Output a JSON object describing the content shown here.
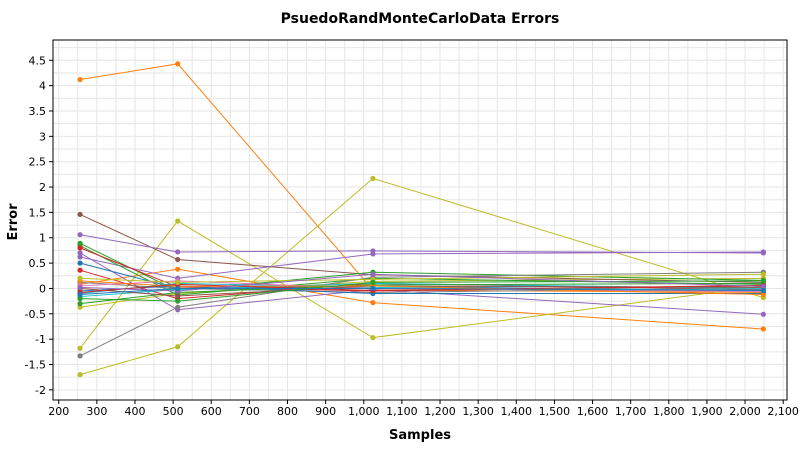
{
  "chart_data": {
    "type": "line",
    "title": "PsuedoRandMonteCarloData Errors",
    "xlabel": "Samples",
    "ylabel": "Error",
    "x": [
      256,
      512,
      1024,
      2048
    ],
    "xlim": [
      185,
      2110
    ],
    "ylim": [
      -2.2,
      4.9
    ],
    "x_ticks": [
      200,
      300,
      400,
      500,
      600,
      700,
      800,
      900,
      1000,
      1100,
      1200,
      1300,
      1400,
      1500,
      1600,
      1700,
      1800,
      1900,
      2000,
      2100
    ],
    "x_tick_labels": [
      "200",
      "300",
      "400",
      "500",
      "600",
      "700",
      "800",
      "900",
      "1,000",
      "1,100",
      "1,200",
      "1,300",
      "1,400",
      "1,500",
      "1,600",
      "1,700",
      "1,800",
      "1,900",
      "2,000",
      "2,100"
    ],
    "y_ticks": [
      -2,
      -1.5,
      -1,
      -0.5,
      0,
      0.5,
      1,
      1.5,
      2,
      2.5,
      3,
      3.5,
      4,
      4.5
    ],
    "y_tick_labels": [
      "-2",
      "-1.5",
      "-1",
      "-0.5",
      "0",
      "0.5",
      "1",
      "1.5",
      "2",
      "2.5",
      "3",
      "3.5",
      "4",
      "4.5"
    ],
    "grid": true,
    "legend": "none",
    "series": [
      {
        "color": "#ff7f0e",
        "values": [
          4.12,
          4.43,
          -0.03,
          -0.08
        ]
      },
      {
        "color": "#ff7f0e",
        "values": [
          0.08,
          0.38,
          -0.28,
          -0.8
        ]
      },
      {
        "color": "#bcbd22",
        "values": [
          -1.18,
          1.33,
          -0.97,
          0.05
        ]
      },
      {
        "color": "#bcbd22",
        "values": [
          -1.7,
          -1.15,
          2.17,
          -0.18
        ]
      },
      {
        "color": "#bcbd22",
        "values": [
          -0.37,
          -0.1,
          0.14,
          0.2
        ]
      },
      {
        "color": "#8c564b",
        "values": [
          1.46,
          0.57,
          0.27,
          0.12
        ]
      },
      {
        "color": "#9467bd",
        "values": [
          1.06,
          0.72,
          0.74,
          0.7
        ]
      },
      {
        "color": "#9467bd",
        "values": [
          0.7,
          -0.42,
          -0.02,
          -0.51
        ]
      },
      {
        "color": "#9467bd",
        "values": [
          0.62,
          0.2,
          0.68,
          0.72
        ]
      },
      {
        "color": "#2ca02c",
        "values": [
          0.89,
          -0.05,
          0.32,
          0.16
        ]
      },
      {
        "color": "#2ca02c",
        "values": [
          0.84,
          -0.13,
          0.2,
          0.08
        ]
      },
      {
        "color": "#d62728",
        "values": [
          0.8,
          0.03,
          -0.05,
          0.05
        ]
      },
      {
        "color": "#d62728",
        "values": [
          0.36,
          -0.2,
          0.1,
          -0.02
        ]
      },
      {
        "color": "#1f77b4",
        "values": [
          0.5,
          0.0,
          0.05,
          -0.06
        ]
      },
      {
        "color": "#7f7f7f",
        "values": [
          -1.33,
          -0.37,
          0.22,
          0.32
        ]
      },
      {
        "color": "#7f7f7f",
        "values": [
          0.12,
          0.0,
          -0.08,
          0.01
        ]
      },
      {
        "color": "#17becf",
        "values": [
          -0.1,
          0.1,
          0.02,
          -0.03
        ]
      },
      {
        "color": "#17becf",
        "values": [
          -0.16,
          -0.02,
          0.1,
          0.0
        ]
      },
      {
        "color": "#e377c2",
        "values": [
          0.05,
          0.15,
          0.0,
          -0.06
        ]
      },
      {
        "color": "#1f77b4",
        "values": [
          -0.05,
          0.05,
          -0.1,
          -0.1
        ]
      },
      {
        "color": "#2ca02c",
        "values": [
          -0.3,
          -0.08,
          0.07,
          0.1
        ]
      },
      {
        "color": "#8c564b",
        "values": [
          0.0,
          -0.15,
          0.05,
          0.02
        ]
      },
      {
        "color": "#ff7f0e",
        "values": [
          0.15,
          0.04,
          0.05,
          -0.12
        ]
      },
      {
        "color": "#d62728",
        "values": [
          -0.08,
          0.08,
          -0.04,
          0.06
        ]
      },
      {
        "color": "#bcbd22",
        "values": [
          0.2,
          0.12,
          0.18,
          0.28
        ]
      },
      {
        "color": "#2ca02c",
        "values": [
          -0.2,
          -0.25,
          0.12,
          0.15
        ]
      },
      {
        "color": "#9467bd",
        "values": [
          0.02,
          -0.05,
          0.28,
          0.04
        ]
      },
      {
        "color": "#1f77b4",
        "values": [
          -0.12,
          0.0,
          0.0,
          -0.04
        ]
      }
    ]
  }
}
